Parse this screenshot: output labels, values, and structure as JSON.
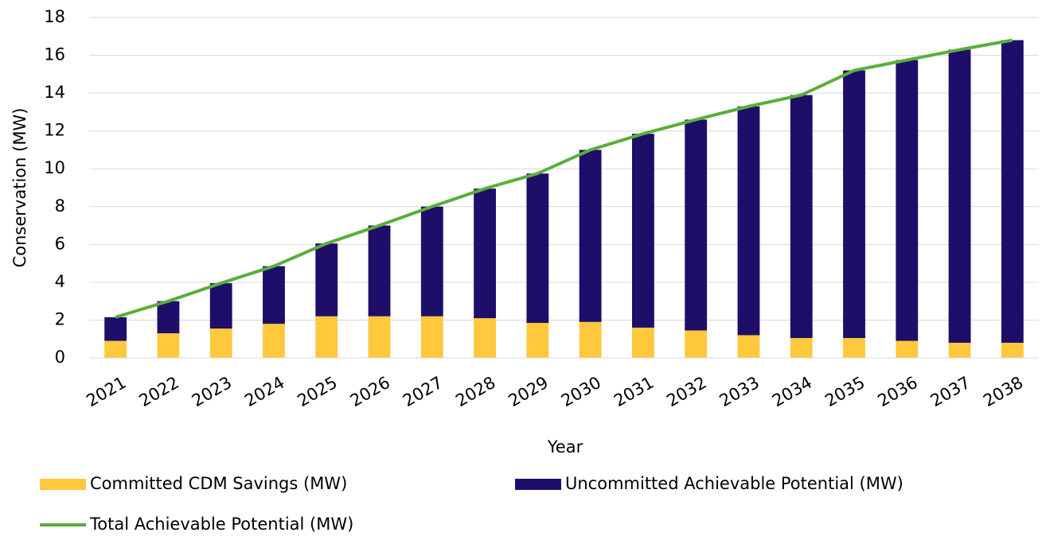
{
  "chart_data": {
    "type": "bar",
    "stacked": true,
    "x_label": "Year",
    "y_label": "Conservation (MW)",
    "categories": [
      "2021",
      "2022",
      "2023",
      "2024",
      "2025",
      "2026",
      "2027",
      "2028",
      "2029",
      "2030",
      "2031",
      "2032",
      "2033",
      "2034",
      "2035",
      "2036",
      "2037",
      "2038"
    ],
    "series": [
      {
        "name": "Committed CDM Savings (MW)",
        "type": "bar",
        "color": "#ffc83d",
        "values": [
          0.9,
          1.3,
          1.55,
          1.8,
          2.2,
          2.2,
          2.2,
          2.1,
          1.85,
          1.9,
          1.6,
          1.45,
          1.2,
          1.05,
          1.05,
          0.9,
          0.8,
          0.8
        ]
      },
      {
        "name": "Uncommitted Achievable Potential (MW)",
        "type": "bar",
        "color": "#1e0e6a",
        "values": [
          1.25,
          1.7,
          2.4,
          3.05,
          3.85,
          4.8,
          5.8,
          6.85,
          7.9,
          9.1,
          10.25,
          11.15,
          12.1,
          12.85,
          14.15,
          14.85,
          15.5,
          16.0
        ]
      },
      {
        "name": "Total Achievable Potential (MW)",
        "type": "line",
        "color": "#5aae3a",
        "values": [
          2.15,
          3.0,
          3.95,
          4.85,
          6.05,
          7.0,
          8.0,
          8.95,
          9.75,
          11.0,
          11.85,
          12.6,
          13.3,
          13.9,
          15.2,
          15.75,
          16.3,
          16.8
        ]
      }
    ],
    "ylim": [
      0,
      18
    ],
    "yticks": [
      0,
      2,
      4,
      6,
      8,
      10,
      12,
      14,
      16,
      18
    ],
    "grid": true,
    "legend": "bottom"
  }
}
